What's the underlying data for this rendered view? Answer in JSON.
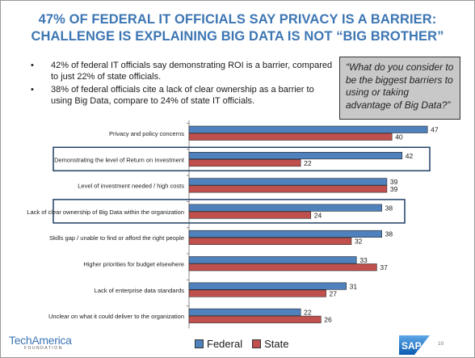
{
  "slide": {
    "title_line1": "47% OF FEDERAL IT OFFICIALS SAY PRIVACY IS A BARRIER:",
    "title_line2": "CHALLENGE IS EXPLAINING BIG DATA IS NOT “BIG BROTHER”",
    "bullets": [
      "42% of federal IT officials say demonstrating ROI is a barrier, compared to just 22% of state officials.",
      "38% of federal officials cite a lack of clear ownership as a barrier to using Big Data, compare to 24% of state IT officials."
    ],
    "quote": "“What do you consider to be the biggest barriers to using or taking advantage of Big Data?”",
    "page_number": "10",
    "logo_left_word1": "Tech",
    "logo_left_word2": "America",
    "logo_left_sub": "FOUNDATION",
    "logo_right": "SAP"
  },
  "colors": {
    "title": "#3d76b3",
    "federal": "#4f81bd",
    "state": "#c0504d",
    "highlight_box": "#1f3f66",
    "quote_bg": "#c8c8c8"
  },
  "chart_data": {
    "type": "bar",
    "orientation": "horizontal",
    "categories": [
      "Privacy and policy concerns",
      "Demonstrating the level of Return on Investment",
      "Level of investment needed / high costs",
      "Lack of clear ownership of Big Data within the organization",
      "Skills gap / unable to find or afford the right people",
      "Higher priorities for budget elsewhere",
      "Lack of enterprise data standards",
      "Unclear on what it could deliver to the organization"
    ],
    "series": [
      {
        "name": "Federal",
        "values": [
          47,
          42,
          39,
          38,
          38,
          33,
          31,
          22
        ]
      },
      {
        "name": "State",
        "values": [
          40,
          22,
          39,
          24,
          32,
          37,
          27,
          26
        ]
      }
    ],
    "highlighted_categories": [
      1,
      3
    ],
    "legend_position": "bottom",
    "grid": false
  }
}
